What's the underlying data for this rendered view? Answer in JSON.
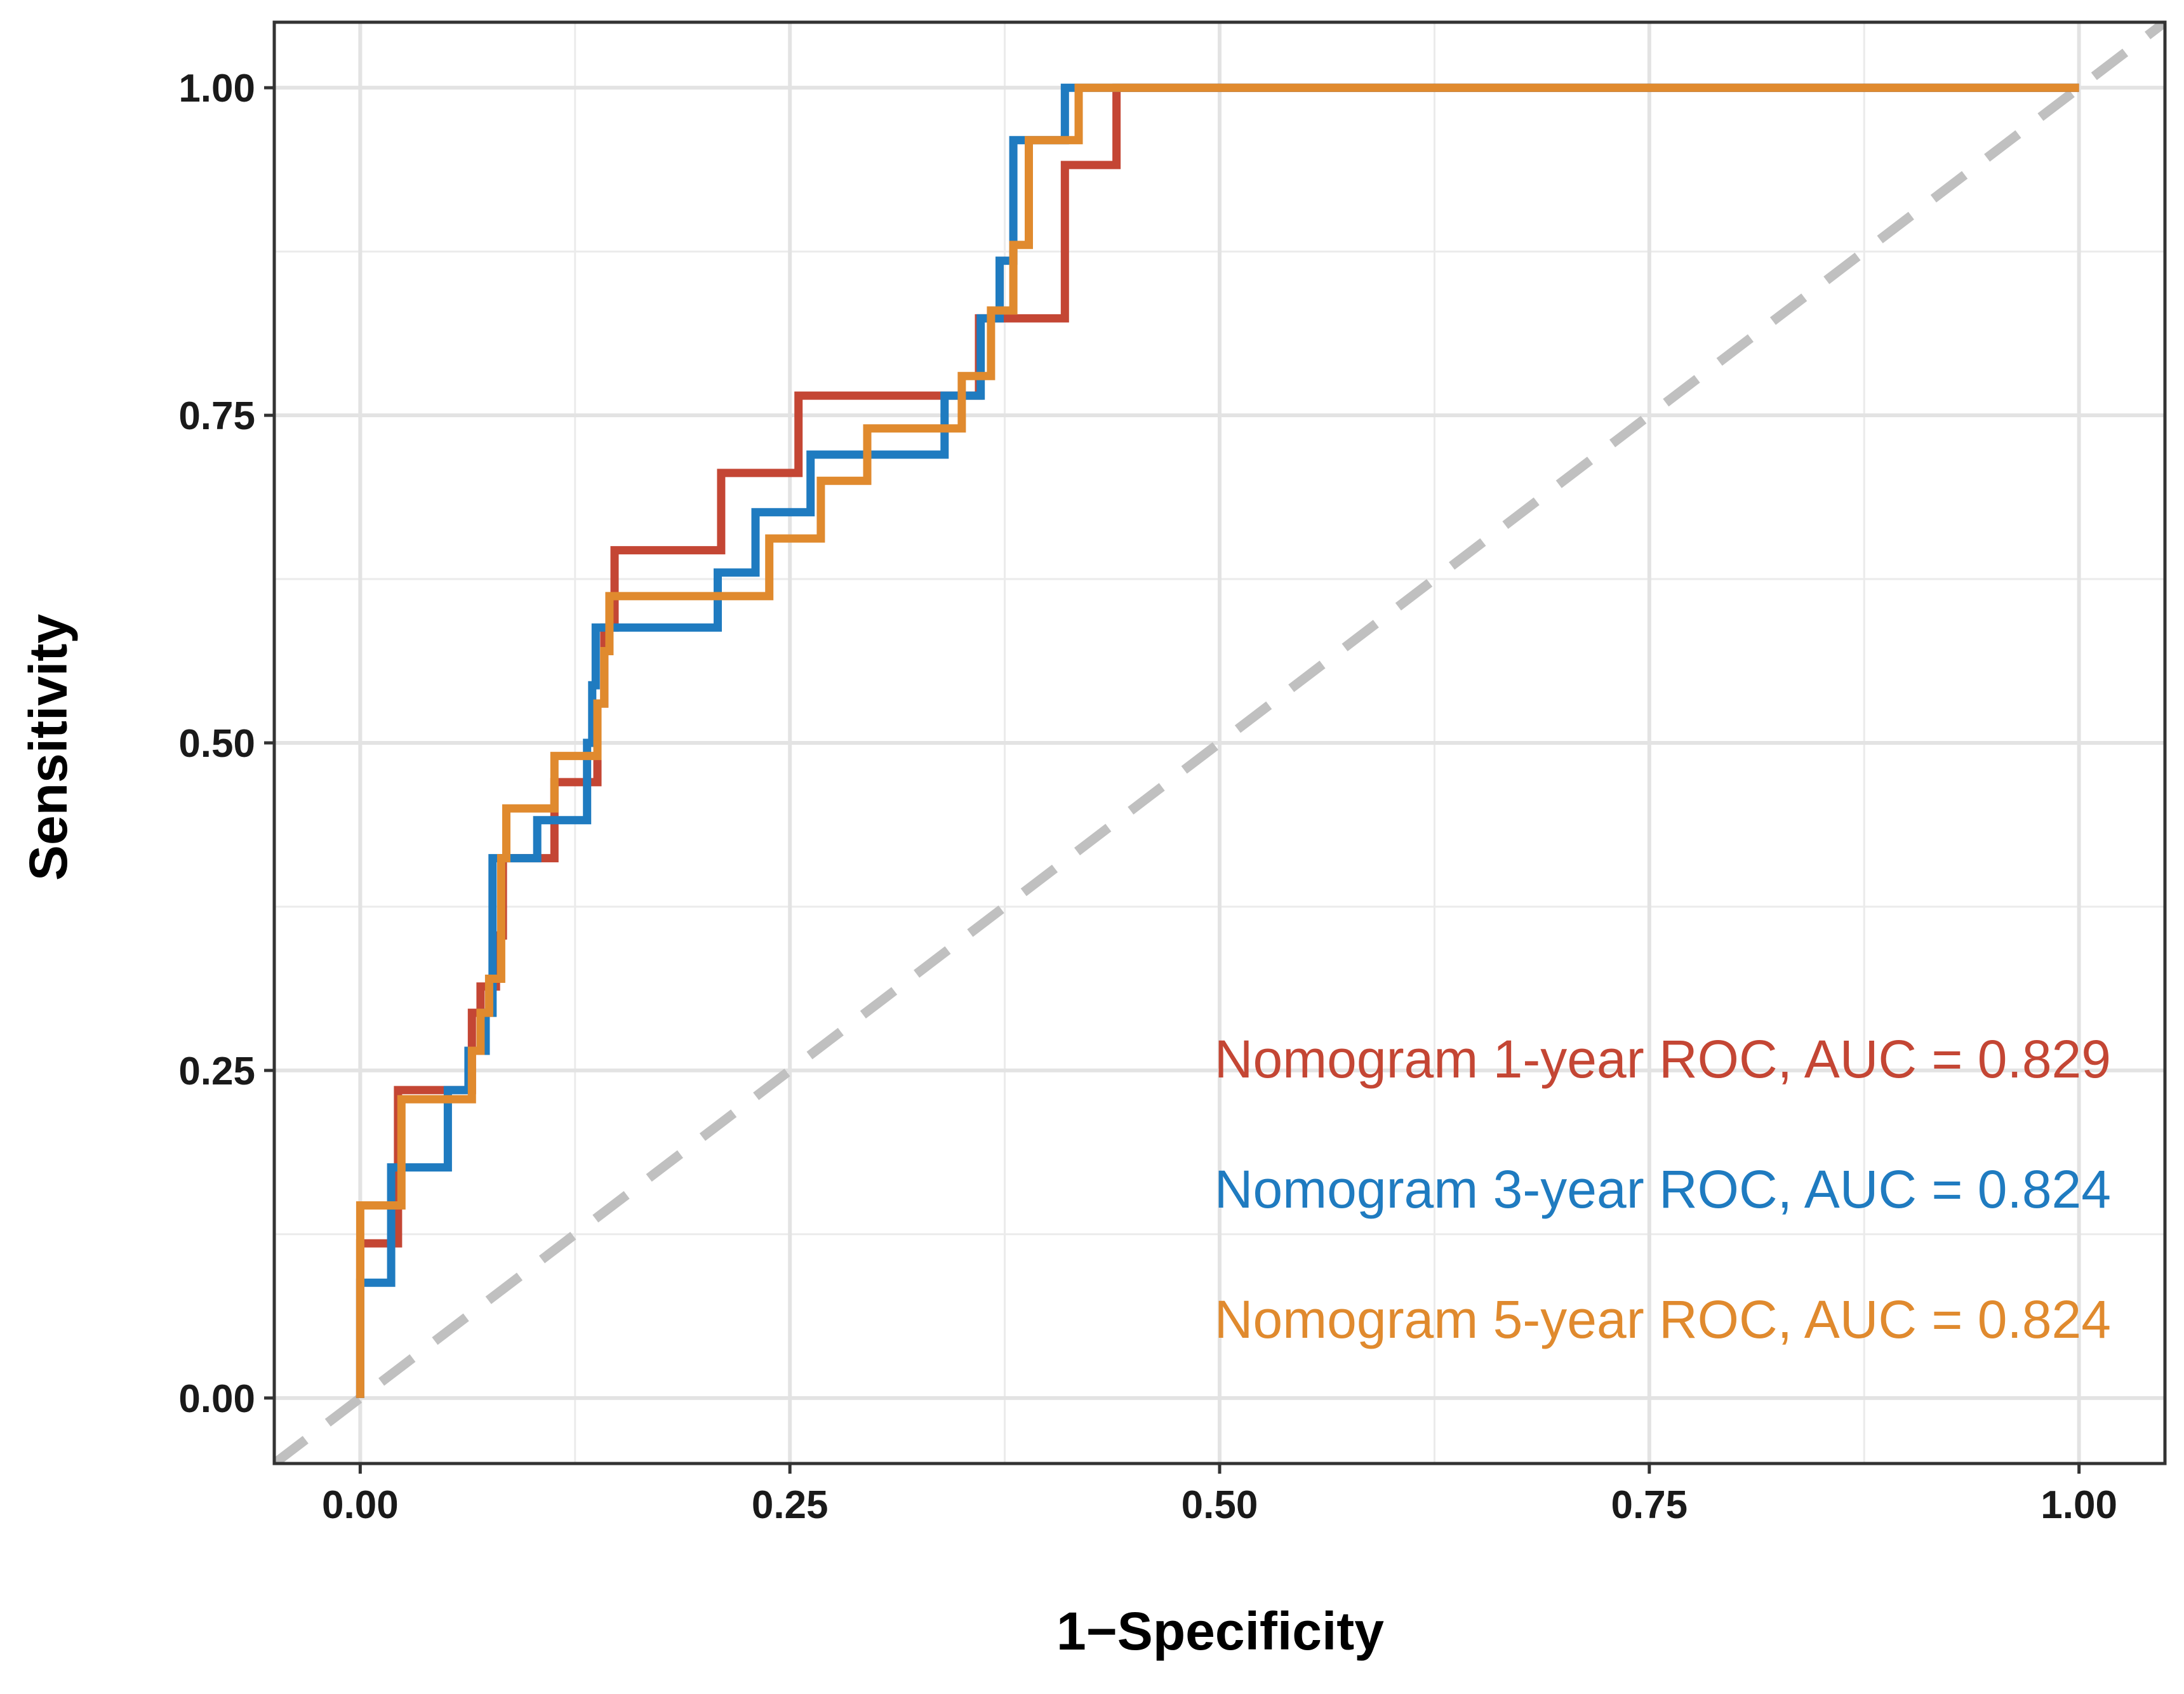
{
  "chart_data": {
    "type": "line",
    "title": "",
    "xlabel": "1−Specificity",
    "ylabel": "Sensitivity",
    "xlim": [
      -0.05,
      1.05
    ],
    "ylim": [
      -0.05,
      1.05
    ],
    "grid": true,
    "x_ticks": [
      0.0,
      0.25,
      0.5,
      0.75,
      1.0
    ],
    "y_ticks": [
      0.0,
      0.25,
      0.5,
      0.75,
      1.0
    ],
    "x_tick_labels": [
      "0.00",
      "0.25",
      "0.50",
      "0.75",
      "1.00"
    ],
    "y_tick_labels": [
      "0.00",
      "0.25",
      "0.50",
      "0.75",
      "1.00"
    ],
    "reference_line": {
      "x": [
        0,
        1
      ],
      "y": [
        0,
        1
      ],
      "style": "dashed",
      "color": "#C0C0C0"
    },
    "legend_position": "bottom-right",
    "series": [
      {
        "name": "Nomogram 1-year ROC, AUC = 0.829",
        "color": "#C44634",
        "x": [
          0,
          0,
          0.022,
          0.022,
          0.065,
          0.065,
          0.07,
          0.07,
          0.079,
          0.079,
          0.083,
          0.083,
          0.088,
          0.088,
          0.113,
          0.113,
          0.138,
          0.138,
          0.142,
          0.142,
          0.148,
          0.148,
          0.21,
          0.21,
          0.255,
          0.255,
          0.36,
          0.36,
          0.367,
          0.367,
          0.41,
          0.41,
          0.44,
          0.44,
          1.0
        ],
        "y": [
          0,
          0.118,
          0.118,
          0.235,
          0.235,
          0.294,
          0.294,
          0.314,
          0.314,
          0.353,
          0.353,
          0.412,
          0.412,
          0.412,
          0.412,
          0.47,
          0.47,
          0.53,
          0.53,
          0.588,
          0.588,
          0.647,
          0.647,
          0.706,
          0.706,
          0.765,
          0.765,
          0.824,
          0.824,
          0.824,
          0.824,
          0.941,
          0.941,
          1.0,
          1.0
        ]
      },
      {
        "name": "Nomogram 3-year ROC, AUC = 0.824",
        "color": "#1F7BC0",
        "x": [
          0,
          0,
          0.018,
          0.018,
          0.024,
          0.024,
          0.051,
          0.051,
          0.063,
          0.063,
          0.073,
          0.073,
          0.077,
          0.077,
          0.103,
          0.103,
          0.132,
          0.132,
          0.135,
          0.135,
          0.137,
          0.137,
          0.208,
          0.208,
          0.23,
          0.23,
          0.262,
          0.262,
          0.34,
          0.34,
          0.361,
          0.361,
          0.372,
          0.372,
          0.38,
          0.38,
          0.388,
          0.388,
          0.41,
          0.41,
          1.0
        ],
        "y": [
          0,
          0.088,
          0.088,
          0.176,
          0.176,
          0.176,
          0.176,
          0.235,
          0.235,
          0.265,
          0.265,
          0.294,
          0.294,
          0.412,
          0.412,
          0.441,
          0.441,
          0.5,
          0.5,
          0.544,
          0.544,
          0.588,
          0.588,
          0.63,
          0.63,
          0.676,
          0.676,
          0.72,
          0.72,
          0.765,
          0.765,
          0.824,
          0.824,
          0.868,
          0.868,
          0.96,
          0.96,
          0.96,
          0.96,
          1.0,
          1.0
        ]
      },
      {
        "name": "Nomogram 5-year ROC, AUC = 0.824",
        "color": "#E08A2E",
        "x": [
          0,
          0,
          0.024,
          0.024,
          0.065,
          0.065,
          0.07,
          0.07,
          0.075,
          0.075,
          0.082,
          0.082,
          0.085,
          0.085,
          0.113,
          0.113,
          0.138,
          0.138,
          0.142,
          0.142,
          0.145,
          0.145,
          0.238,
          0.238,
          0.26,
          0.26,
          0.268,
          0.268,
          0.295,
          0.295,
          0.35,
          0.35,
          0.367,
          0.367,
          0.38,
          0.38,
          0.389,
          0.389,
          0.418,
          0.418,
          1.0
        ],
        "y": [
          0,
          0.147,
          0.147,
          0.228,
          0.228,
          0.265,
          0.265,
          0.294,
          0.294,
          0.32,
          0.32,
          0.412,
          0.412,
          0.45,
          0.45,
          0.49,
          0.49,
          0.53,
          0.53,
          0.57,
          0.57,
          0.612,
          0.612,
          0.656,
          0.656,
          0.656,
          0.656,
          0.7,
          0.7,
          0.74,
          0.74,
          0.78,
          0.78,
          0.83,
          0.83,
          0.88,
          0.88,
          0.96,
          0.96,
          1.0,
          1.0
        ]
      }
    ]
  }
}
